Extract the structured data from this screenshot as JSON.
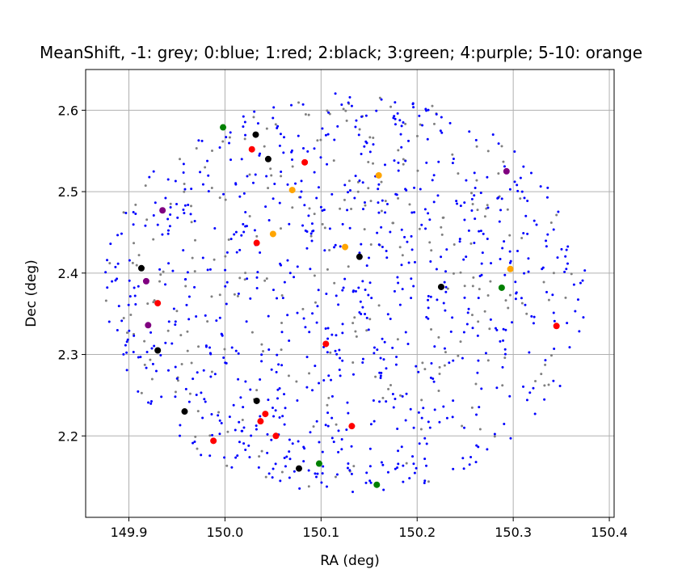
{
  "chart_data": {
    "type": "scatter",
    "title": "MeanShift, -1: grey; 0:blue; 1:red; 2:black; 3:green; 4:purple; 5-10: orange",
    "xlabel": "RA (deg)",
    "ylabel": "Dec (deg)",
    "xlim": [
      149.855,
      150.405
    ],
    "ylim": [
      2.1,
      2.65
    ],
    "xticks": [
      149.9,
      150.0,
      150.1,
      150.2,
      150.3,
      150.4
    ],
    "xtick_labels": [
      "149.9",
      "150.0",
      "150.1",
      "150.2",
      "150.3",
      "150.4"
    ],
    "yticks": [
      2.2,
      2.3,
      2.4,
      2.5,
      2.6
    ],
    "ytick_labels": [
      "2.2",
      "2.3",
      "2.4",
      "2.5",
      "2.6"
    ],
    "grid": true,
    "field": {
      "center": [
        150.125,
        2.375
      ],
      "radius_ra": 0.252,
      "radius_dec": 0.247
    },
    "series": [
      {
        "name": "-1",
        "label": "grey",
        "color": "#808080",
        "count": 280,
        "seed": 7
      },
      {
        "name": "0",
        "label": "blue",
        "color": "#0000ff",
        "count": 820,
        "seed": 13
      },
      {
        "name": "5-10",
        "label": "orange",
        "color": "#ffa500",
        "points": [
          [
            150.16,
            2.52
          ],
          [
            150.07,
            2.502
          ],
          [
            150.05,
            2.448
          ],
          [
            150.125,
            2.432
          ],
          [
            150.297,
            2.405
          ]
        ]
      },
      {
        "name": "1",
        "label": "red",
        "color": "#ff0000",
        "points": [
          [
            150.028,
            2.552
          ],
          [
            150.083,
            2.536
          ],
          [
            150.033,
            2.437
          ],
          [
            149.93,
            2.363
          ],
          [
            150.105,
            2.313
          ],
          [
            150.345,
            2.335
          ],
          [
            150.042,
            2.227
          ],
          [
            150.037,
            2.218
          ],
          [
            150.053,
            2.2
          ],
          [
            150.132,
            2.212
          ],
          [
            149.988,
            2.194
          ]
        ]
      },
      {
        "name": "2",
        "label": "black",
        "color": "#000000",
        "points": [
          [
            150.032,
            2.57
          ],
          [
            150.045,
            2.54
          ],
          [
            150.14,
            2.42
          ],
          [
            149.913,
            2.406
          ],
          [
            150.225,
            2.383
          ],
          [
            149.93,
            2.305
          ],
          [
            150.033,
            2.243
          ],
          [
            149.958,
            2.23
          ],
          [
            150.077,
            2.16
          ]
        ]
      },
      {
        "name": "3",
        "label": "green",
        "color": "#008000",
        "points": [
          [
            149.998,
            2.579
          ],
          [
            150.288,
            2.382
          ],
          [
            150.098,
            2.166
          ],
          [
            150.158,
            2.14
          ]
        ]
      },
      {
        "name": "4",
        "label": "purple",
        "color": "#800080",
        "points": [
          [
            150.293,
            2.525
          ],
          [
            149.935,
            2.477
          ],
          [
            149.918,
            2.39
          ],
          [
            149.92,
            2.336
          ]
        ]
      }
    ]
  }
}
